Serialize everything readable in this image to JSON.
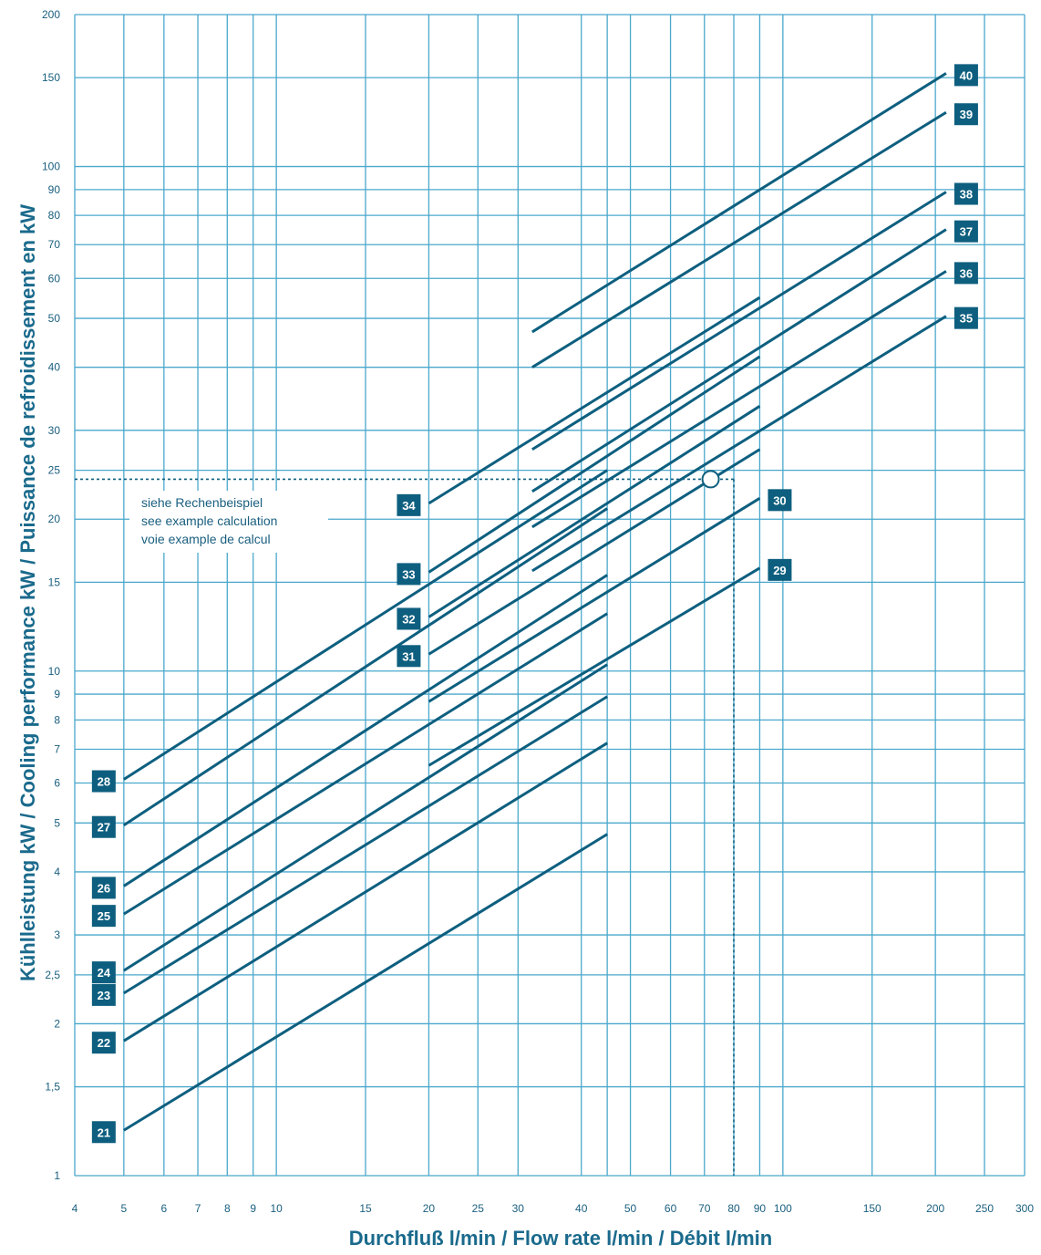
{
  "chart_data": {
    "type": "line",
    "xscale": "log",
    "yscale": "log",
    "xlim": [
      4,
      300
    ],
    "ylim": [
      1,
      200
    ],
    "xlabel": "Durchfluß l/min / Flow rate l/min / Débit l/min",
    "ylabel": "Kühlleistung kW / Cooling performance kW / Puissance de refroidissement en kW",
    "grid": true,
    "x_gridlines": [
      4,
      5,
      6,
      7,
      8,
      9,
      10,
      15,
      20,
      25,
      30,
      40,
      45,
      50,
      60,
      70,
      80,
      90,
      100,
      150,
      200,
      250,
      300
    ],
    "y_gridlines": [
      1,
      1.5,
      2,
      2.5,
      3,
      4,
      5,
      6,
      7,
      8,
      9,
      10,
      15,
      20,
      25,
      30,
      40,
      50,
      60,
      70,
      80,
      90,
      100,
      150,
      200
    ],
    "x_ticks": [
      4,
      5,
      6,
      7,
      8,
      9,
      10,
      15,
      20,
      25,
      30,
      40,
      50,
      60,
      70,
      80,
      90,
      100,
      150,
      200,
      250,
      300
    ],
    "x_tick_labels": [
      "4",
      "5",
      "6",
      "7",
      "8",
      "9",
      "10",
      "15",
      "20",
      "25",
      "30",
      "40",
      "50",
      "60",
      "70",
      "80",
      "90",
      "100",
      "150",
      "200",
      "250",
      "300"
    ],
    "y_ticks": [
      1,
      1.5,
      2,
      2.5,
      3,
      4,
      5,
      6,
      7,
      8,
      9,
      10,
      15,
      20,
      25,
      30,
      40,
      50,
      60,
      70,
      80,
      90,
      100,
      150,
      200
    ],
    "y_tick_labels": [
      "1",
      "1,5",
      "2",
      "2,5",
      "3",
      "4",
      "5",
      "6",
      "7",
      "8",
      "9",
      "10",
      "15",
      "20",
      "25",
      "30",
      "40",
      "50",
      "60",
      "70",
      "80",
      "90",
      "100",
      "150",
      "200"
    ],
    "series": [
      {
        "name": "21",
        "x": [
          5,
          45
        ],
        "y": [
          1.23,
          4.75
        ],
        "label_side": "left"
      },
      {
        "name": "22",
        "x": [
          5,
          45
        ],
        "y": [
          1.85,
          7.2
        ],
        "label_side": "left"
      },
      {
        "name": "23",
        "x": [
          5,
          45
        ],
        "y": [
          2.3,
          8.9
        ],
        "label_side": "left"
      },
      {
        "name": "24",
        "x": [
          5,
          45
        ],
        "y": [
          2.55,
          10.3
        ],
        "label_side": "left"
      },
      {
        "name": "25",
        "x": [
          5,
          45
        ],
        "y": [
          3.3,
          13.0
        ],
        "label_side": "left"
      },
      {
        "name": "26",
        "x": [
          5,
          45
        ],
        "y": [
          3.75,
          15.5
        ],
        "label_side": "left"
      },
      {
        "name": "27",
        "x": [
          5,
          45
        ],
        "y": [
          4.95,
          21.0
        ],
        "label_side": "left"
      },
      {
        "name": "28",
        "x": [
          5,
          45
        ],
        "y": [
          6.1,
          25.0
        ],
        "label_side": "left"
      },
      {
        "name": "29",
        "x": [
          20,
          90
        ],
        "y": [
          6.5,
          16.0
        ],
        "label_side": "right"
      },
      {
        "name": "30",
        "x": [
          20,
          90
        ],
        "y": [
          8.7,
          22.0
        ],
        "label_side": "right"
      },
      {
        "name": "31",
        "x": [
          20,
          90
        ],
        "y": [
          10.8,
          27.5
        ],
        "label_side": "left"
      },
      {
        "name": "32",
        "x": [
          20,
          90
        ],
        "y": [
          12.8,
          33.5
        ],
        "label_side": "left"
      },
      {
        "name": "33",
        "x": [
          20,
          90
        ],
        "y": [
          15.7,
          42.0
        ],
        "label_side": "left"
      },
      {
        "name": "34",
        "x": [
          20,
          90
        ],
        "y": [
          21.5,
          55.0
        ],
        "label_side": "left"
      },
      {
        "name": "35",
        "x": [
          32,
          210
        ],
        "y": [
          15.8,
          50.5
        ],
        "label_side": "right"
      },
      {
        "name": "36",
        "x": [
          32,
          210
        ],
        "y": [
          19.3,
          62.0
        ],
        "label_side": "right"
      },
      {
        "name": "37",
        "x": [
          32,
          210
        ],
        "y": [
          22.7,
          75.0
        ],
        "label_side": "right"
      },
      {
        "name": "38",
        "x": [
          32,
          210
        ],
        "y": [
          27.5,
          89.0
        ],
        "label_side": "right"
      },
      {
        "name": "39",
        "x": [
          32,
          210
        ],
        "y": [
          40.0,
          128.0
        ],
        "label_side": "right"
      },
      {
        "name": "40",
        "x": [
          32,
          210
        ],
        "y": [
          47.0,
          153.0
        ],
        "label_side": "right"
      }
    ],
    "annotation": {
      "lines": [
        "siehe Rechenbeispiel",
        "see example calculation",
        "voie example de calcul"
      ],
      "point": {
        "x": 72,
        "y": 24
      },
      "reference_x": 80,
      "reference_y": 24
    }
  },
  "colors": {
    "grid": "#4aa8cc",
    "line": "#0e5f7f",
    "badge": "#0e5f7f",
    "text": "#1a5f7f",
    "title": "#1a6a8c"
  }
}
